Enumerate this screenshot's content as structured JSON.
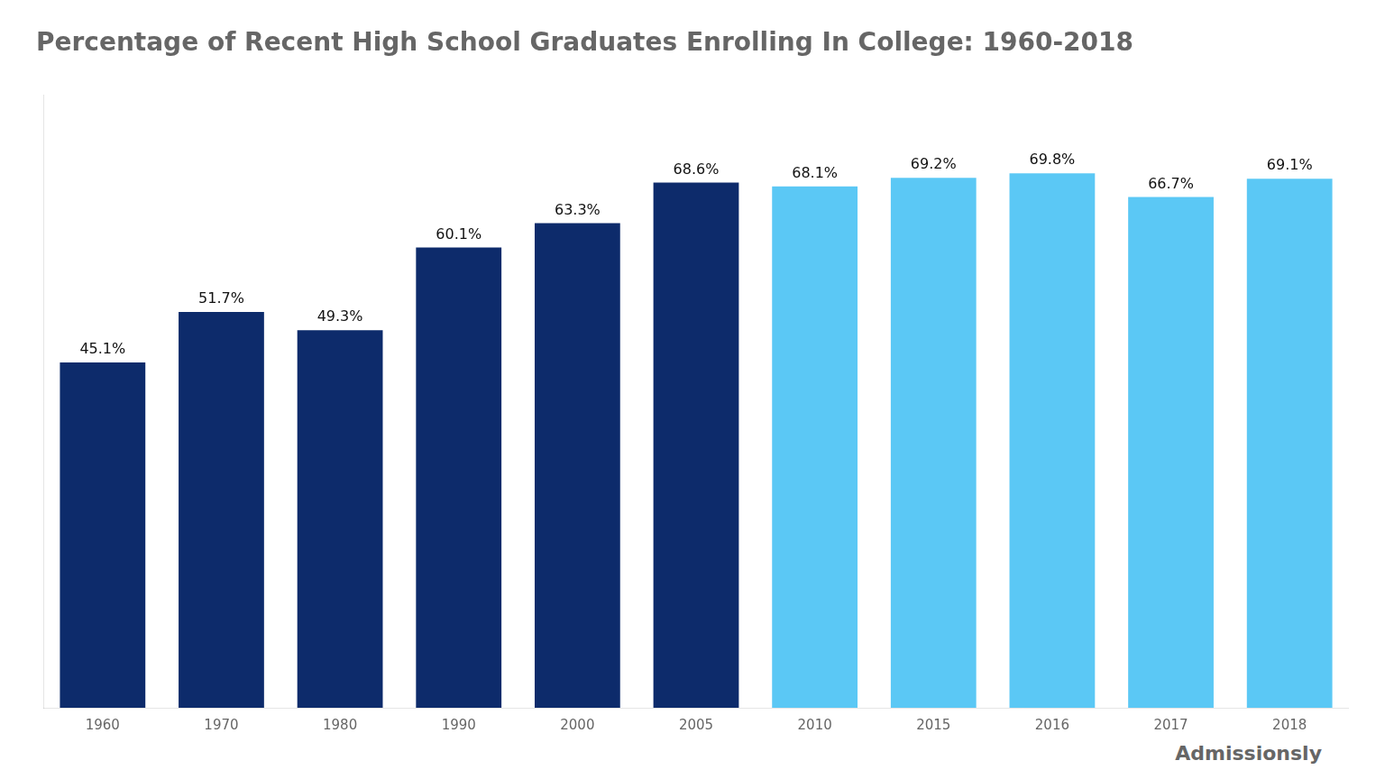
{
  "chart_data": {
    "type": "bar",
    "title": "Percentage of Recent High School Graduates Enrolling In College: 1960-2018",
    "categories": [
      "1960",
      "1970",
      "1980",
      "1990",
      "2000",
      "2005",
      "2010",
      "2015",
      "2016",
      "2017",
      "2018"
    ],
    "values": [
      45.1,
      51.7,
      49.3,
      60.1,
      63.3,
      68.6,
      68.1,
      69.2,
      69.8,
      66.7,
      69.1
    ],
    "value_labels": [
      "45.1%",
      "51.7%",
      "49.3%",
      "60.1%",
      "63.3%",
      "68.6%",
      "68.1%",
      "69.2%",
      "69.8%",
      "66.7%",
      "69.1%"
    ],
    "colors": [
      "#0d2b6b",
      "#0d2b6b",
      "#0d2b6b",
      "#0d2b6b",
      "#0d2b6b",
      "#0d2b6b",
      "#5bc8f5",
      "#5bc8f5",
      "#5bc8f5",
      "#5bc8f5",
      "#5bc8f5"
    ],
    "ylim": [
      0,
      80
    ],
    "grid": false,
    "data_labels": true,
    "tick_labels": "x",
    "annotations": [
      "Admissionsly"
    ]
  }
}
